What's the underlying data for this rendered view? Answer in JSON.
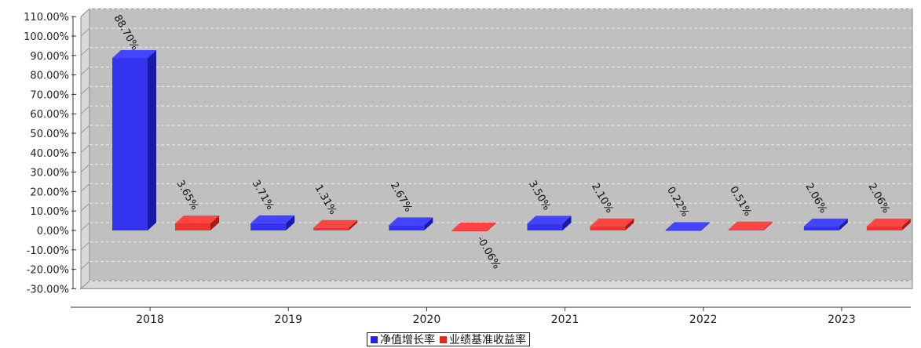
{
  "chart_data": {
    "type": "bar",
    "categories": [
      "2018",
      "2019",
      "2020",
      "2021",
      "2022",
      "2023"
    ],
    "series": [
      {
        "name": "净值增长率",
        "values": [
          88.7,
          3.71,
          2.67,
          3.5,
          0.22,
          2.06
        ],
        "labels": [
          "88.70%",
          "3.71%",
          "2.67%",
          "3.50%",
          "0.22%",
          "2.06%"
        ]
      },
      {
        "name": "业绩基准收益率",
        "values": [
          3.65,
          1.31,
          -0.06,
          2.1,
          0.51,
          2.06
        ],
        "labels": [
          "3.65%",
          "1.31%",
          "-0.06%",
          "2.10%",
          "0.51%",
          "2.06%"
        ]
      }
    ],
    "yticks": [
      "110.00%",
      "100.00%",
      "90.00%",
      "80.00%",
      "70.00%",
      "60.00%",
      "50.00%",
      "40.00%",
      "30.00%",
      "20.00%",
      "10.00%",
      "0.00%",
      "-10.00%",
      "-20.00%",
      "-30.00%"
    ],
    "ylim": [
      -30,
      110
    ],
    "grid": true,
    "legend_position": "bottom-center",
    "colors": {
      "series1": "#3333ee",
      "series2": "#ee3333",
      "plot_bg": "#c0c0c0",
      "wall": "#d8d8d8"
    }
  },
  "legend": {
    "item1": "净值增长率",
    "item2": "业绩基准收益率"
  }
}
